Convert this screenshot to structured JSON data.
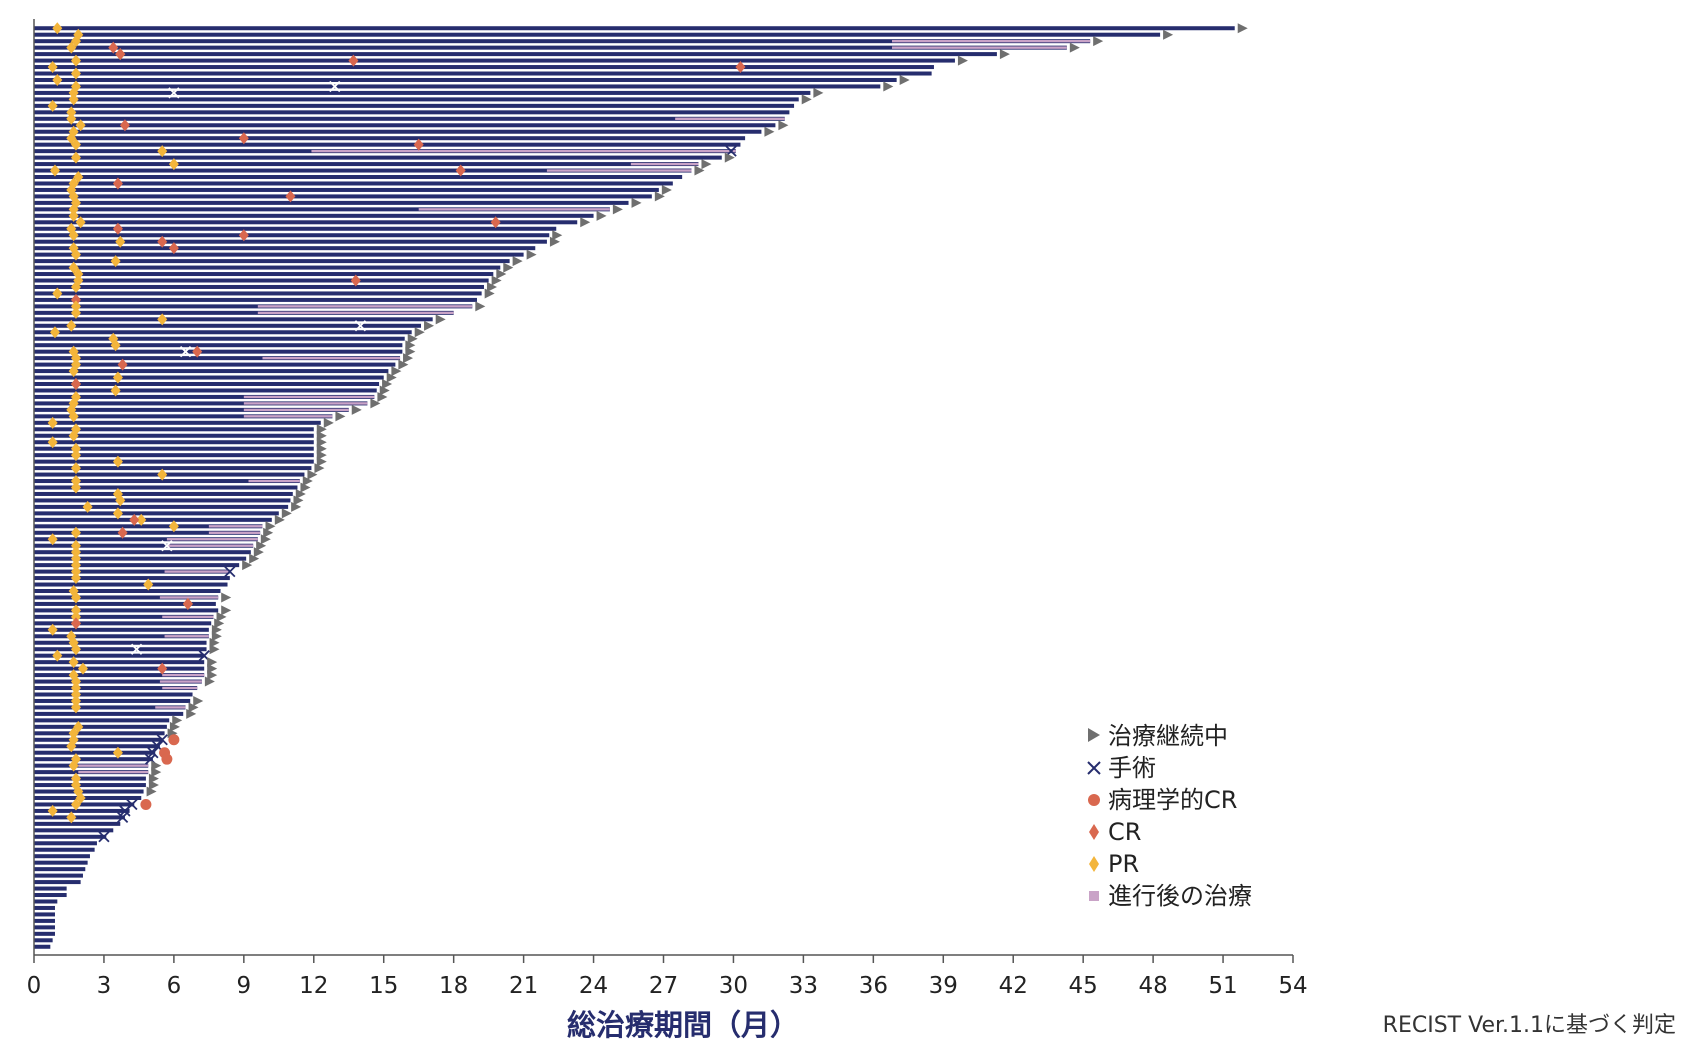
{
  "colors": {
    "bar": "#262d6e",
    "ongoing": "#6f6f6f",
    "surgery": "#262d6e",
    "pathological_cr": "#d9684f",
    "cr": "#d9684f",
    "pr": "#f3b53b",
    "post_progression": "#c9a3c7"
  },
  "footnote": "RECIST Ver.1.1に基づく判定",
  "chart_data": {
    "type": "swimmer",
    "xlabel": "総治療期間（月）",
    "ylabel": "",
    "xlim": [
      0,
      54
    ],
    "xticks": [
      0,
      3,
      6,
      9,
      12,
      15,
      18,
      21,
      24,
      27,
      30,
      33,
      36,
      39,
      42,
      45,
      48,
      51,
      54
    ],
    "grid": false,
    "legend_position": "bottom-right",
    "legend": [
      {
        "key": "ongoing",
        "label": "治療継続中",
        "marker": "triangle"
      },
      {
        "key": "surgery",
        "label": "手術",
        "marker": "x"
      },
      {
        "key": "pathological_cr",
        "label": "病理学的CR",
        "marker": "circle"
      },
      {
        "key": "cr",
        "label": "CR",
        "marker": "diamond"
      },
      {
        "key": "pr",
        "label": "PR",
        "marker": "diamond"
      },
      {
        "key": "post_progression",
        "label": "進行後の治療",
        "marker": "square"
      }
    ],
    "patients": [
      {
        "total": 51.5,
        "ongoing": true,
        "pr": 1.0
      },
      {
        "total": 48.3,
        "ongoing": true,
        "pr": 1.9
      },
      {
        "total": 45.3,
        "ongoing": true,
        "pr": 1.8,
        "post": [
          36.8,
          45.3
        ]
      },
      {
        "total": 44.3,
        "ongoing": true,
        "pr": 1.6,
        "cr": 3.4,
        "post": [
          36.8,
          44.3
        ]
      },
      {
        "total": 41.3,
        "ongoing": true,
        "cr": 3.7,
        "pr": 3.7
      },
      {
        "total": 39.5,
        "ongoing": true,
        "cr": 13.7,
        "pr": 1.8
      },
      {
        "total": 38.6,
        "ongoing": false,
        "pr": 0.8,
        "cr": 30.3
      },
      {
        "total": 38.5,
        "ongoing": false,
        "pr": 1.8
      },
      {
        "total": 37.0,
        "ongoing": true,
        "pr": 1.0
      },
      {
        "total": 36.3,
        "ongoing": true,
        "pr": 1.8,
        "surgery": 12.9
      },
      {
        "total": 33.3,
        "ongoing": true,
        "pr": 1.7,
        "surgery": 6.0
      },
      {
        "total": 32.8,
        "ongoing": true,
        "pr": 1.7
      },
      {
        "total": 32.6,
        "ongoing": false,
        "pr": 0.8
      },
      {
        "total": 32.4,
        "ongoing": false,
        "pr": 1.6
      },
      {
        "total": 32.2,
        "ongoing": false,
        "pr": 1.6,
        "post": [
          27.5,
          32.2
        ]
      },
      {
        "total": 31.8,
        "ongoing": true,
        "pr": 2.0,
        "cr": 3.9
      },
      {
        "total": 31.2,
        "ongoing": true,
        "pr": 1.7
      },
      {
        "total": 30.5,
        "ongoing": false,
        "pr": 1.6,
        "cr": 9.0
      },
      {
        "total": 30.3,
        "ongoing": false,
        "pr": 1.8,
        "cr": 16.5
      },
      {
        "total": 30.1,
        "ongoing": false,
        "pr": 5.5,
        "post": [
          11.9,
          30.1
        ],
        "surgery": 29.9
      },
      {
        "total": 29.5,
        "ongoing": true,
        "pr": 1.8
      },
      {
        "total": 28.5,
        "ongoing": true,
        "pr": 6.0,
        "post": [
          25.6,
          28.5
        ]
      },
      {
        "total": 28.2,
        "ongoing": true,
        "pr": 0.9,
        "cr": 18.3,
        "post": [
          22.0,
          28.2
        ]
      },
      {
        "total": 27.8,
        "ongoing": false,
        "pr": 1.9
      },
      {
        "total": 27.4,
        "ongoing": false,
        "pr": 1.7,
        "cr": 3.6
      },
      {
        "total": 26.8,
        "ongoing": true,
        "pr": 1.6
      },
      {
        "total": 26.5,
        "ongoing": true,
        "pr": 1.7,
        "cr": 11.0
      },
      {
        "total": 25.5,
        "ongoing": true,
        "pr": 1.8
      },
      {
        "total": 24.7,
        "ongoing": true,
        "pr": 1.7,
        "post": [
          16.5,
          24.7
        ]
      },
      {
        "total": 24.0,
        "ongoing": true,
        "pr": 1.7
      },
      {
        "total": 23.3,
        "ongoing": true,
        "pr": 2.0,
        "cr": 19.8
      },
      {
        "total": 22.4,
        "ongoing": false,
        "pr": 1.6,
        "cr": 3.6
      },
      {
        "total": 22.1,
        "ongoing": true,
        "pr": 1.7,
        "cr": 9.0
      },
      {
        "total": 22.0,
        "ongoing": true,
        "pr": 3.7,
        "cr": 5.5
      },
      {
        "total": 21.5,
        "ongoing": false,
        "pr": 1.7,
        "cr": 6.0
      },
      {
        "total": 21.0,
        "ongoing": true,
        "pr": 1.8
      },
      {
        "total": 20.4,
        "ongoing": true,
        "pr": 3.5
      },
      {
        "total": 20.0,
        "ongoing": true,
        "pr": 1.7
      },
      {
        "total": 19.7,
        "ongoing": true,
        "pr": 1.9
      },
      {
        "total": 19.5,
        "ongoing": true,
        "pr": 1.9,
        "cr": 13.8
      },
      {
        "total": 19.3,
        "ongoing": true,
        "pr": 1.8
      },
      {
        "total": 19.2,
        "ongoing": true,
        "pr": 1.0
      },
      {
        "total": 19.0,
        "ongoing": false,
        "cr": 1.8
      },
      {
        "total": 18.8,
        "ongoing": true,
        "pr": 1.8,
        "post": [
          9.6,
          18.8
        ]
      },
      {
        "total": 18.0,
        "ongoing": false,
        "pr": 1.8,
        "post": [
          9.6,
          18.0
        ]
      },
      {
        "total": 17.1,
        "ongoing": true,
        "pr": 5.5
      },
      {
        "total": 16.6,
        "ongoing": true,
        "pr": 1.6,
        "surgery": 14.0
      },
      {
        "total": 16.2,
        "ongoing": true,
        "pr": 0.9
      },
      {
        "total": 15.9,
        "ongoing": true,
        "pr": 3.4
      },
      {
        "total": 15.8,
        "ongoing": true,
        "pr": 3.5
      },
      {
        "total": 15.8,
        "ongoing": true,
        "pr": 1.7,
        "cr": 7.0,
        "surgery": 6.5
      },
      {
        "total": 15.7,
        "ongoing": true,
        "pr": 1.8,
        "post": [
          9.8,
          15.7
        ]
      },
      {
        "total": 15.5,
        "ongoing": true,
        "pr": 1.8,
        "cr": 3.8
      },
      {
        "total": 15.2,
        "ongoing": true,
        "pr": 1.7
      },
      {
        "total": 15.0,
        "ongoing": true,
        "pr": 3.6
      },
      {
        "total": 14.8,
        "ongoing": true,
        "pr": 1.8,
        "cr": 1.8
      },
      {
        "total": 14.7,
        "ongoing": true,
        "pr": 3.5
      },
      {
        "total": 14.6,
        "ongoing": true,
        "pr": 1.8,
        "post": [
          9.0,
          14.6
        ]
      },
      {
        "total": 14.3,
        "ongoing": true,
        "pr": 1.7,
        "post": [
          9.0,
          14.3
        ]
      },
      {
        "total": 13.5,
        "ongoing": true,
        "pr": 1.6,
        "post": [
          9.0,
          13.5
        ]
      },
      {
        "total": 12.8,
        "ongoing": true,
        "pr": 1.7,
        "post": [
          9.0,
          12.8
        ]
      },
      {
        "total": 12.3,
        "ongoing": true,
        "pr": 0.8
      },
      {
        "total": 12.0,
        "ongoing": true,
        "pr": 1.8
      },
      {
        "total": 12.0,
        "ongoing": true,
        "pr": 1.7
      },
      {
        "total": 12.0,
        "ongoing": true,
        "pr": 0.8
      },
      {
        "total": 12.0,
        "ongoing": true,
        "pr": 1.8
      },
      {
        "total": 12.0,
        "ongoing": true,
        "pr": 1.8
      },
      {
        "total": 12.0,
        "ongoing": true,
        "pr": 3.6
      },
      {
        "total": 11.9,
        "ongoing": true,
        "pr": 1.8
      },
      {
        "total": 11.6,
        "ongoing": true,
        "pr": 5.5
      },
      {
        "total": 11.4,
        "ongoing": true,
        "pr": 1.8,
        "post": [
          9.2,
          11.4
        ]
      },
      {
        "total": 11.3,
        "ongoing": true,
        "pr": 1.8
      },
      {
        "total": 11.1,
        "ongoing": true,
        "pr": 3.6
      },
      {
        "total": 11.0,
        "ongoing": true,
        "pr": 3.7
      },
      {
        "total": 10.9,
        "ongoing": true,
        "pr": 2.3
      },
      {
        "total": 10.5,
        "ongoing": true,
        "pr": 3.6
      },
      {
        "total": 10.2,
        "ongoing": true,
        "pr": 4.6,
        "cr": 4.3
      },
      {
        "total": 9.8,
        "ongoing": true,
        "pr": 6.0,
        "post": [
          7.5,
          9.8
        ]
      },
      {
        "total": 9.7,
        "ongoing": true,
        "pr": 1.8,
        "cr": 3.8,
        "post": [
          7.5,
          9.7
        ]
      },
      {
        "total": 9.6,
        "ongoing": true,
        "pr": 0.8,
        "post": [
          5.7,
          9.6
        ]
      },
      {
        "total": 9.4,
        "ongoing": true,
        "pr": 1.8,
        "surgery": 5.7,
        "post": [
          5.7,
          9.4
        ]
      },
      {
        "total": 9.3,
        "ongoing": true,
        "pr": 1.8
      },
      {
        "total": 9.1,
        "ongoing": true,
        "pr": 1.8
      },
      {
        "total": 8.8,
        "ongoing": true,
        "pr": 1.8
      },
      {
        "total": 8.4,
        "ongoing": false,
        "pr": 1.8,
        "surgery": 8.4,
        "post": [
          5.6,
          8.4
        ]
      },
      {
        "total": 8.4,
        "ongoing": false,
        "pr": 1.8
      },
      {
        "total": 8.3,
        "ongoing": false,
        "pr": 4.9
      },
      {
        "total": 8.0,
        "ongoing": false,
        "pr": 1.7
      },
      {
        "total": 7.9,
        "ongoing": true,
        "pr": 1.8,
        "post": [
          5.4,
          7.9
        ]
      },
      {
        "total": 7.8,
        "ongoing": false,
        "pr": 6.6,
        "cr": 6.6
      },
      {
        "total": 7.9,
        "ongoing": true,
        "pr": 1.8
      },
      {
        "total": 7.7,
        "ongoing": true,
        "pr": 1.8,
        "post": [
          5.5,
          7.7
        ]
      },
      {
        "total": 7.6,
        "ongoing": true,
        "pr": 1.8,
        "cr": 1.8
      },
      {
        "total": 7.5,
        "ongoing": true,
        "pr": 0.8
      },
      {
        "total": 7.5,
        "ongoing": true,
        "pr": 1.6,
        "post": [
          5.6,
          7.5
        ]
      },
      {
        "total": 7.4,
        "ongoing": true,
        "pr": 1.7
      },
      {
        "total": 7.4,
        "ongoing": true,
        "pr": 1.8,
        "surgery": 4.4
      },
      {
        "total": 7.3,
        "ongoing": false,
        "pr": 1.0,
        "surgery": 7.3
      },
      {
        "total": 7.3,
        "ongoing": true,
        "pr": 1.7
      },
      {
        "total": 7.3,
        "ongoing": true,
        "pr": 2.1,
        "cr": 5.5
      },
      {
        "total": 7.3,
        "ongoing": true,
        "pr": 1.7,
        "post": [
          5.5,
          7.3
        ]
      },
      {
        "total": 7.2,
        "ongoing": true,
        "pr": 1.8,
        "post": [
          5.4,
          7.2
        ]
      },
      {
        "total": 7.0,
        "ongoing": false,
        "pr": 1.8,
        "post": [
          5.5,
          7.0
        ]
      },
      {
        "total": 6.8,
        "ongoing": false,
        "pr": 1.8
      },
      {
        "total": 6.7,
        "ongoing": true,
        "pr": 1.8
      },
      {
        "total": 6.5,
        "ongoing": true,
        "pr": 1.8,
        "post": [
          5.2,
          6.5
        ]
      },
      {
        "total": 6.4,
        "ongoing": true
      },
      {
        "total": 5.8,
        "ongoing": true
      },
      {
        "total": 5.7,
        "ongoing": true,
        "pr": 1.9
      },
      {
        "total": 5.6,
        "ongoing": true,
        "pr": 1.7
      },
      {
        "total": 5.5,
        "ongoing": false,
        "pr": 1.7,
        "surgery": 5.5,
        "pcr": 6.0
      },
      {
        "total": 5.4,
        "ongoing": false,
        "pr": 1.6,
        "surgery": 5.3
      },
      {
        "total": 5.2,
        "ongoing": false,
        "pr": 3.6,
        "surgery": 5.1,
        "pcr": 5.6
      },
      {
        "total": 5.1,
        "ongoing": false,
        "pr": 1.8,
        "surgery": 5.0,
        "pcr": 5.7
      },
      {
        "total": 4.9,
        "ongoing": true,
        "pr": 1.7,
        "post": [
          1.9,
          4.9
        ]
      },
      {
        "total": 4.9,
        "ongoing": true,
        "post": [
          1.9,
          4.9
        ]
      },
      {
        "total": 4.8,
        "ongoing": true,
        "pr": 1.8
      },
      {
        "total": 4.8,
        "ongoing": true,
        "pr": 1.8
      },
      {
        "total": 4.7,
        "ongoing": true,
        "pr": 1.9
      },
      {
        "total": 4.6,
        "ongoing": false,
        "pr": 2.0
      },
      {
        "total": 4.3,
        "ongoing": false,
        "pr": 1.8,
        "surgery": 4.2,
        "pcr": 4.8
      },
      {
        "total": 4.1,
        "ongoing": false,
        "pr": 0.8,
        "surgery": 3.9
      },
      {
        "total": 3.9,
        "ongoing": false,
        "pr": 1.6,
        "surgery": 3.8
      },
      {
        "total": 3.7,
        "ongoing": false
      },
      {
        "total": 3.4,
        "ongoing": false
      },
      {
        "total": 3.1,
        "ongoing": false,
        "surgery": 3.0
      },
      {
        "total": 2.7,
        "ongoing": false
      },
      {
        "total": 2.6,
        "ongoing": false
      },
      {
        "total": 2.4,
        "ongoing": false
      },
      {
        "total": 2.3,
        "ongoing": false
      },
      {
        "total": 2.2,
        "ongoing": false
      },
      {
        "total": 2.1,
        "ongoing": false
      },
      {
        "total": 2.0,
        "ongoing": false
      },
      {
        "total": 1.4,
        "ongoing": false
      },
      {
        "total": 1.4,
        "ongoing": false
      },
      {
        "total": 1.0,
        "ongoing": false
      },
      {
        "total": 0.9,
        "ongoing": false
      },
      {
        "total": 0.9,
        "ongoing": false
      },
      {
        "total": 0.9,
        "ongoing": false
      },
      {
        "total": 0.9,
        "ongoing": false
      },
      {
        "total": 0.9,
        "ongoing": false
      },
      {
        "total": 0.8,
        "ongoing": false
      },
      {
        "total": 0.7,
        "ongoing": false
      }
    ]
  }
}
